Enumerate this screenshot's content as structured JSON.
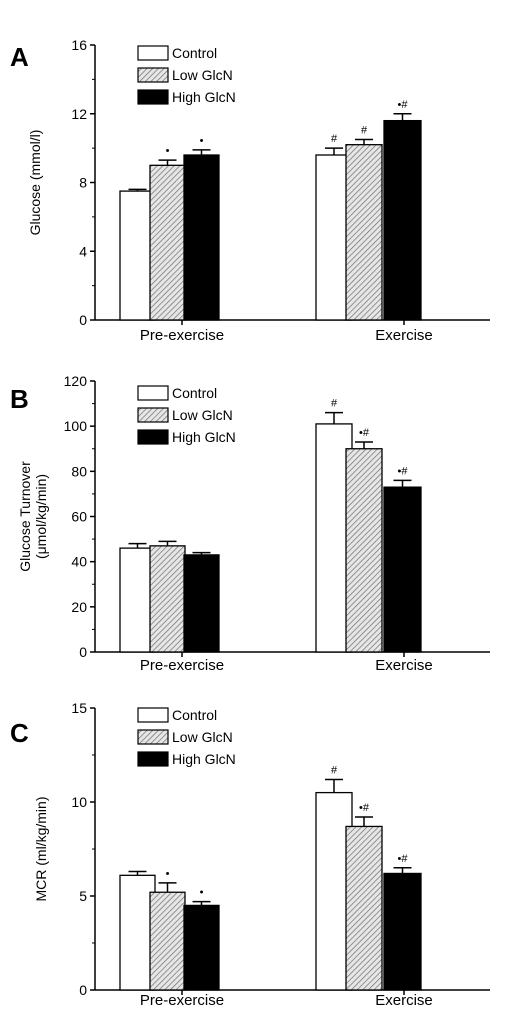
{
  "legend": {
    "items": [
      {
        "label": "Control",
        "fill": "#ffffff"
      },
      {
        "label": "Low GlcN",
        "fill": "hatch"
      },
      {
        "label": "High GlcN",
        "fill": "#000000"
      }
    ]
  },
  "colors": {
    "axis": "#000000",
    "control": "#ffffff",
    "low": "#c8c8c8",
    "high": "#000000"
  },
  "chart_data": [
    {
      "type": "bar",
      "panel_label": "A",
      "categories": [
        "Pre-exercise",
        "Exercise"
      ],
      "ylabel": "Glucose (mmol/l)",
      "ylim": [
        0,
        16
      ],
      "yticks": [
        0,
        4,
        8,
        12,
        16
      ],
      "series": [
        {
          "name": "Control",
          "values": [
            7.5,
            9.6
          ],
          "errors": [
            0.1,
            0.4
          ],
          "markers": [
            "",
            "#"
          ]
        },
        {
          "name": "Low GlcN",
          "values": [
            9.0,
            10.2
          ],
          "errors": [
            0.3,
            0.3
          ],
          "markers": [
            "•",
            "#"
          ]
        },
        {
          "name": "High GlcN",
          "values": [
            9.6,
            11.6
          ],
          "errors": [
            0.3,
            0.4
          ],
          "markers": [
            "•",
            "•#"
          ]
        }
      ]
    },
    {
      "type": "bar",
      "panel_label": "B",
      "categories": [
        "Pre-exercise",
        "Exercise"
      ],
      "ylabel": "Glucose Turnover",
      "ylabel2": "(μmol/kg/min)",
      "ylim": [
        0,
        120
      ],
      "yticks": [
        0,
        20,
        40,
        60,
        80,
        100,
        120
      ],
      "series": [
        {
          "name": "Control",
          "values": [
            46,
            101
          ],
          "errors": [
            2,
            5
          ],
          "markers": [
            "",
            "#"
          ]
        },
        {
          "name": "Low GlcN",
          "values": [
            47,
            90
          ],
          "errors": [
            2,
            3
          ],
          "markers": [
            "",
            "•#"
          ]
        },
        {
          "name": "High GlcN",
          "values": [
            43,
            73
          ],
          "errors": [
            1,
            3
          ],
          "markers": [
            "",
            "•#"
          ]
        }
      ]
    },
    {
      "type": "bar",
      "panel_label": "C",
      "categories": [
        "Pre-exercise",
        "Exercise"
      ],
      "ylabel": "MCR (ml/kg/min)",
      "ylim": [
        0,
        15
      ],
      "yticks": [
        0,
        5,
        10,
        15
      ],
      "series": [
        {
          "name": "Control",
          "values": [
            6.1,
            10.5
          ],
          "errors": [
            0.2,
            0.7
          ],
          "markers": [
            "",
            "#"
          ]
        },
        {
          "name": "Low GlcN",
          "values": [
            5.2,
            8.7
          ],
          "errors": [
            0.5,
            0.5
          ],
          "markers": [
            "•",
            "•#"
          ]
        },
        {
          "name": "High GlcN",
          "values": [
            4.5,
            6.2
          ],
          "errors": [
            0.2,
            0.3
          ],
          "markers": [
            "•",
            "•#"
          ]
        }
      ]
    }
  ]
}
